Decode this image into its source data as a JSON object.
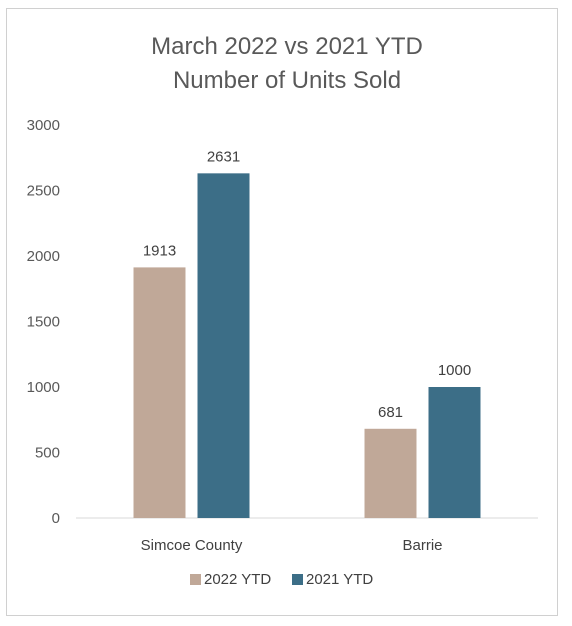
{
  "chart_data": {
    "type": "bar",
    "title_lines": [
      "March 2022 vs 2021 YTD",
      "Number of Units Sold"
    ],
    "categories": [
      "Simcoe County",
      "Barrie"
    ],
    "series": [
      {
        "name": "2022 YTD",
        "values": [
          1913,
          681
        ],
        "color": "#c0a898"
      },
      {
        "name": "2021 YTD",
        "values": [
          2631,
          1000
        ],
        "color": "#3c6e87"
      }
    ],
    "yticks": [
      "0",
      "500",
      "1000",
      "1500",
      "2000",
      "2500",
      "3000"
    ],
    "ylim": [
      0,
      3000
    ],
    "grid": false,
    "legend_position": "bottom"
  }
}
